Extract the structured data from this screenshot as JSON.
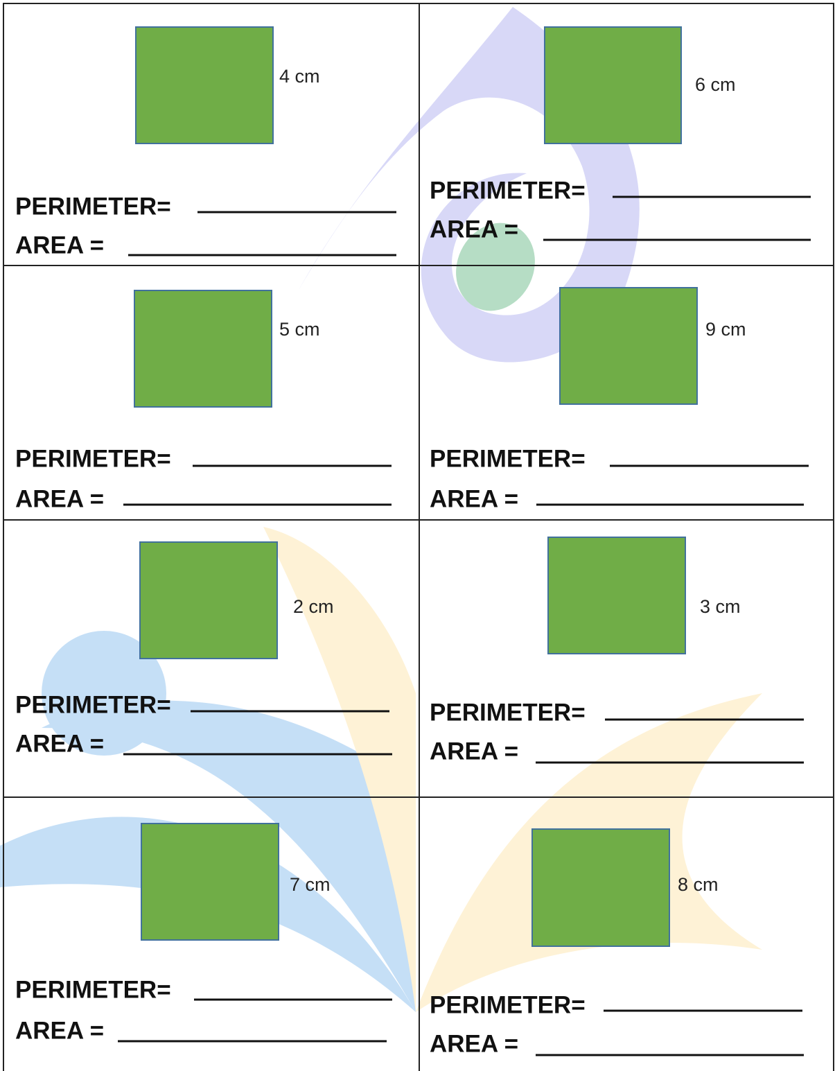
{
  "cells": [
    {
      "side": "4 cm",
      "perimeter": "PERIMETER=",
      "area": "AREA ="
    },
    {
      "side": "6 cm",
      "perimeter": "PERIMETER=",
      "area": "AREA ="
    },
    {
      "side": "5 cm",
      "perimeter": "PERIMETER=",
      "area": "AREA ="
    },
    {
      "side": "9 cm",
      "perimeter": "PERIMETER=",
      "area": "AREA ="
    },
    {
      "side": "2 cm",
      "perimeter": "PERIMETER=",
      "area": "AREA ="
    },
    {
      "side": "3 cm",
      "perimeter": "PERIMETER=",
      "area": "AREA ="
    },
    {
      "side": "7 cm",
      "perimeter": "PERIMETER=",
      "area": "AREA ="
    },
    {
      "side": "8 cm",
      "perimeter": "PERIMETER=",
      "area": "AREA ="
    }
  ]
}
